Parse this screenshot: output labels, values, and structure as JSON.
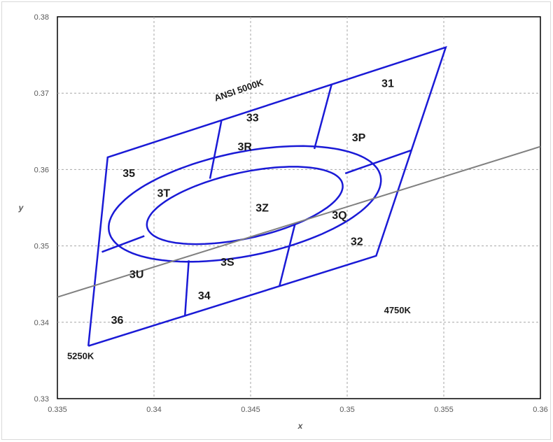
{
  "chart_data": {
    "type": "line",
    "xlabel": "x",
    "ylabel": "y",
    "xlim": [
      0.335,
      0.36
    ],
    "ylim": [
      0.33,
      0.38
    ],
    "x_ticks": [
      "0.335",
      "0.34",
      "0.345",
      "0.35",
      "0.355",
      "0.36"
    ],
    "y_ticks": [
      "0.33",
      "0.34",
      "0.35",
      "0.36",
      "0.37",
      "0.38"
    ],
    "grid": "dashed",
    "colors": {
      "bins": "#1a1ad6",
      "planckian": "#808080"
    },
    "series": [
      {
        "kind": "outline",
        "points": [
          [
            0.3366,
            0.3369
          ],
          [
            0.3515,
            0.3487
          ],
          [
            0.3551,
            0.376
          ],
          [
            0.3376,
            0.3616
          ],
          [
            0.3366,
            0.3369
          ]
        ]
      },
      {
        "kind": "ellipse",
        "center": [
          0.3447,
          0.3555
        ],
        "semi_axes": [
          0.0087,
          0.0056
        ],
        "rotation_deg": 50
      },
      {
        "kind": "ellipse",
        "center": [
          0.3447,
          0.3553
        ],
        "semi_axes": [
          0.0062,
          0.0036
        ],
        "rotation_deg": 45
      },
      {
        "kind": "segment",
        "points": [
          [
            0.3416,
            0.3408
          ],
          [
            0.3418,
            0.3481
          ]
        ]
      },
      {
        "kind": "segment",
        "points": [
          [
            0.3465,
            0.3448
          ],
          [
            0.3473,
            0.3529
          ]
        ]
      },
      {
        "kind": "segment",
        "points": [
          [
            0.3429,
            0.3588
          ],
          [
            0.3435,
            0.3665
          ]
        ]
      },
      {
        "kind": "segment",
        "points": [
          [
            0.3483,
            0.3627
          ],
          [
            0.3492,
            0.3712
          ]
        ]
      },
      {
        "kind": "segment",
        "points": [
          [
            0.3373,
            0.3492
          ],
          [
            0.3395,
            0.3513
          ]
        ]
      },
      {
        "kind": "segment",
        "points": [
          [
            0.3499,
            0.3595
          ],
          [
            0.3533,
            0.3625
          ]
        ]
      },
      {
        "kind": "planckian",
        "points": [
          [
            0.335,
            0.3433
          ],
          [
            0.36,
            0.363
          ]
        ]
      }
    ],
    "labels": [
      {
        "text": "31",
        "x": 0.3521,
        "y": 0.3712
      },
      {
        "text": "33",
        "x": 0.3451,
        "y": 0.3667
      },
      {
        "text": "3R",
        "x": 0.3447,
        "y": 0.3629
      },
      {
        "text": "3P",
        "x": 0.3506,
        "y": 0.3641
      },
      {
        "text": "35",
        "x": 0.3387,
        "y": 0.3594
      },
      {
        "text": "3T",
        "x": 0.3405,
        "y": 0.3568
      },
      {
        "text": "3Z",
        "x": 0.3456,
        "y": 0.3549
      },
      {
        "text": "3Q",
        "x": 0.3496,
        "y": 0.3539
      },
      {
        "text": "32",
        "x": 0.3505,
        "y": 0.3505
      },
      {
        "text": "3S",
        "x": 0.3438,
        "y": 0.3478
      },
      {
        "text": "3U",
        "x": 0.3391,
        "y": 0.3462
      },
      {
        "text": "34",
        "x": 0.3426,
        "y": 0.3434
      },
      {
        "text": "36",
        "x": 0.3381,
        "y": 0.3402
      },
      {
        "text": "4750K",
        "x": 0.3526,
        "y": 0.3415
      },
      {
        "text": "5250K",
        "x": 0.3362,
        "y": 0.3355
      },
      {
        "text": "ANSI 5000K",
        "x": 0.3444,
        "y": 0.3703,
        "rotate": -19
      }
    ]
  }
}
